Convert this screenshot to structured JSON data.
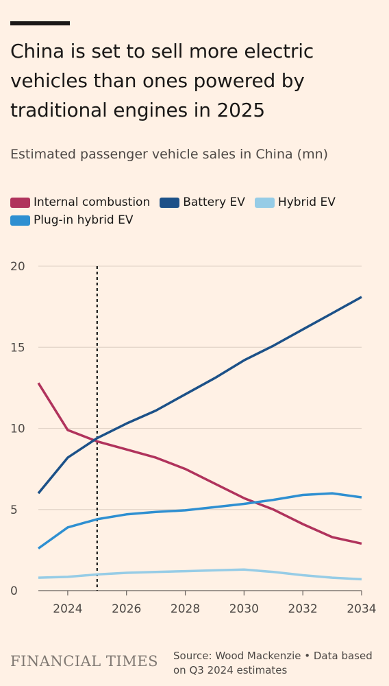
{
  "header": {
    "title": "China is set to sell more electric vehicles than ones powered by traditional engines in 2025",
    "subtitle": "Estimated passenger vehicle sales in China (mn)"
  },
  "footer": {
    "logo": "FINANCIAL TIMES",
    "source": "Source: Wood Mackenzie • Data based on Q3 2024 estimates"
  },
  "chart_data": {
    "type": "line",
    "x": [
      2023,
      2024,
      2025,
      2026,
      2027,
      2028,
      2029,
      2030,
      2031,
      2032,
      2033,
      2034
    ],
    "xticks": [
      2024,
      2026,
      2028,
      2030,
      2032,
      2034
    ],
    "xlim": [
      2023,
      2034
    ],
    "ylim": [
      0,
      20
    ],
    "yticks": [
      0,
      5,
      10,
      15,
      20
    ],
    "grid": true,
    "legend_position": "top",
    "marker_line_x": 2025,
    "series": [
      {
        "name": "Internal combustion",
        "color": "#b0335c",
        "values": [
          12.8,
          9.9,
          9.2,
          8.7,
          8.2,
          7.5,
          6.6,
          5.7,
          5.0,
          4.1,
          3.3,
          2.9
        ]
      },
      {
        "name": "Battery EV",
        "color": "#1c5188",
        "values": [
          6.0,
          8.2,
          9.4,
          10.3,
          11.1,
          12.1,
          13.1,
          14.2,
          15.1,
          16.1,
          17.1,
          18.1
        ]
      },
      {
        "name": "Hybrid EV",
        "color": "#96cce6",
        "values": [
          0.8,
          0.85,
          1.0,
          1.1,
          1.15,
          1.2,
          1.25,
          1.3,
          1.15,
          0.95,
          0.8,
          0.7
        ]
      },
      {
        "name": "Plug-in hybrid EV",
        "color": "#2e8fd1",
        "values": [
          2.6,
          3.9,
          4.4,
          4.7,
          4.85,
          4.95,
          5.15,
          5.35,
          5.6,
          5.9,
          6.0,
          5.75
        ]
      }
    ]
  }
}
